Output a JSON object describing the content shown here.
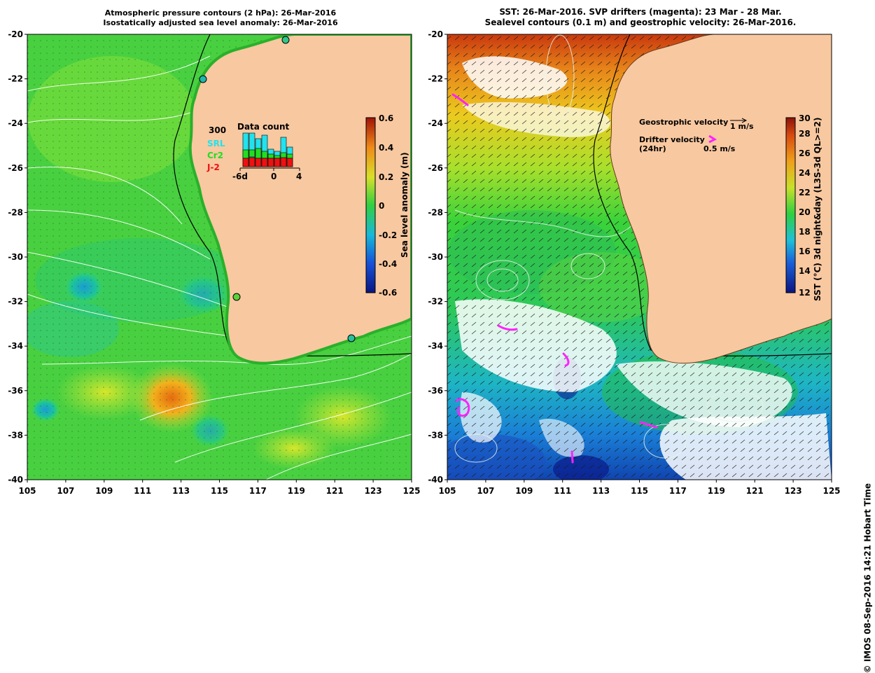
{
  "left_panel": {
    "title_line1": "Atmospheric pressure contours (2 hPa): 26-Mar-2016",
    "title_line2": "Isostatically adjusted sea level anomaly: 26-Mar-2016",
    "y_ticks": [
      "-20",
      "-22",
      "-24",
      "-26",
      "-28",
      "-30",
      "-32",
      "-34",
      "-36",
      "-38",
      "-40"
    ],
    "x_ticks": [
      "105",
      "107",
      "109",
      "111",
      "113",
      "115",
      "117",
      "119",
      "121",
      "123",
      "125"
    ],
    "colorbar": {
      "label": "Sea level anomaly (m)",
      "ticks": [
        "0.6",
        "0.4",
        "0.2",
        "0",
        "-0.2",
        "-0.4",
        "-0.6"
      ]
    },
    "data_count": {
      "title": "Data count",
      "max_label": "300",
      "legend": [
        "SRL",
        "Cr2",
        "J-2"
      ],
      "x_ticks": [
        "-6d",
        "0",
        "4"
      ],
      "colors": {
        "SRL": "#22e2ee",
        "Cr2": "#22dd22",
        "J-2": "#ee1111"
      }
    }
  },
  "right_panel": {
    "title_line1": "SST: 26-Mar-2016. SVP drifters (magenta): 23 Mar - 28 Mar.",
    "title_line2": "Sealevel contours (0.1 m) and geostrophic velocity: 26-Mar-2016.",
    "y_ticks": [
      "-20",
      "-22",
      "-24",
      "-26",
      "-28",
      "-30",
      "-32",
      "-34",
      "-36",
      "-38",
      "-40"
    ],
    "x_ticks": [
      "105",
      "107",
      "109",
      "111",
      "113",
      "115",
      "117",
      "119",
      "121",
      "123",
      "125"
    ],
    "colorbar": {
      "label": "SST (°C) 3d night&day (L3S-3d QL>=2)",
      "ticks": [
        "30",
        "28",
        "26",
        "24",
        "22",
        "20",
        "18",
        "16",
        "14",
        "12"
      ]
    },
    "legend": {
      "geo_label": "Geostrophic velocity",
      "geo_scale": "1 m/s",
      "drifter_label": "Drifter velocity",
      "drifter_sub": "(24hr)",
      "drifter_scale": "0.5 m/s"
    }
  },
  "credit": "© IMOS 08-Sep-2016 14:21 Hobart Time",
  "colors": {
    "land": "#f8c8a0",
    "ocean_green": "#4cd43c",
    "drifter": "#ff22ff"
  }
}
